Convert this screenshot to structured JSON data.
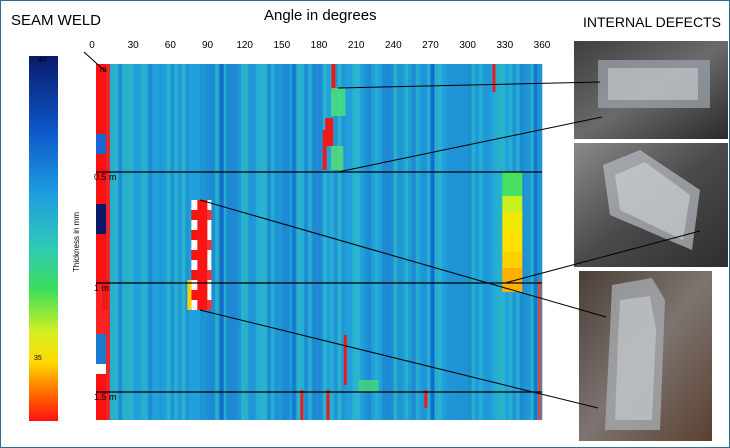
{
  "labels": {
    "seam_weld": "SEAM WELD",
    "internal_defects": "INTERNAL DEFECTS"
  },
  "chart_data": {
    "type": "heatmap",
    "title": "Angle in degrees",
    "xlabel": "Angle in degrees",
    "ylabel": "Thickness in mm",
    "x_ticks": [
      "0",
      "30",
      "60",
      "90",
      "120",
      "150",
      "180",
      "210",
      "240",
      "270",
      "300",
      "330",
      "360"
    ],
    "x_range": [
      0,
      360
    ],
    "colorbar": {
      "min": 40,
      "max": 35,
      "tick_labels": [
        "40",
        "35"
      ],
      "label": "Thickness in mm"
    },
    "depth_markers": [
      "0.5 m",
      "1 m",
      "1.5 m"
    ],
    "top_marker": "m",
    "defect_photos": [
      "defect-photo-1",
      "defect-photo-2",
      "defect-photo-3"
    ],
    "colors": {
      "colormap": [
        "#0a1a6a",
        "#0d55c8",
        "#1e8ee0",
        "#2ec2c8",
        "#3cde6c",
        "#d8f020",
        "#ffe000",
        "#ff8000",
        "#ff1010"
      ]
    }
  }
}
